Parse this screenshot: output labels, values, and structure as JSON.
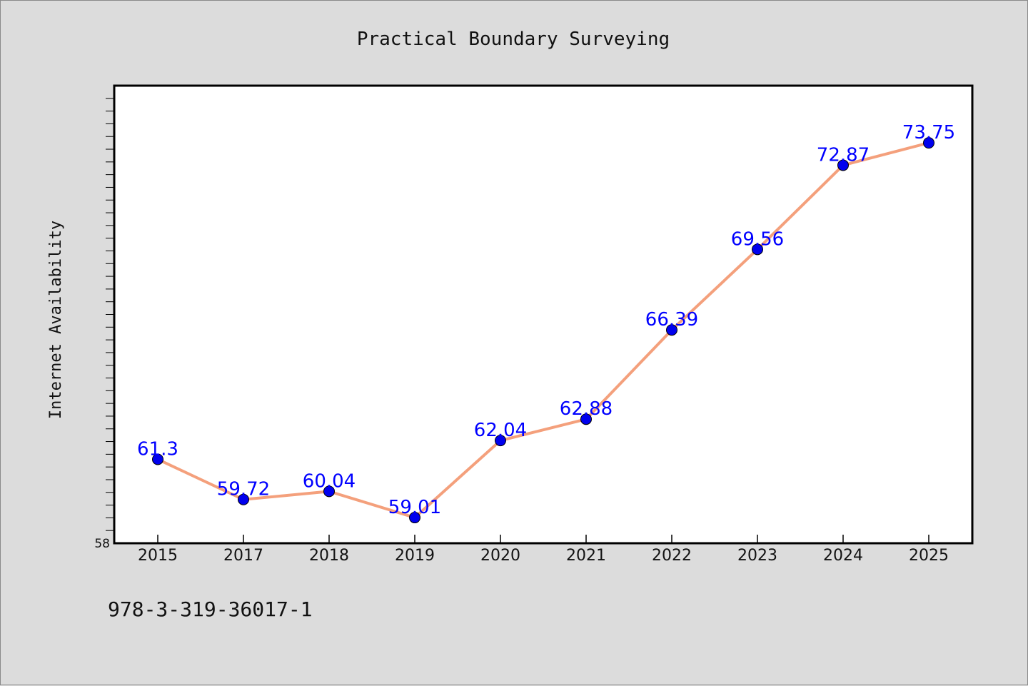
{
  "chart_data": {
    "type": "line",
    "title": "Practical Boundary Surveying",
    "xlabel": "",
    "ylabel": "Internet Availability",
    "categories": [
      "2015",
      "2017",
      "2018",
      "2019",
      "2020",
      "2021",
      "2022",
      "2023",
      "2024",
      "2025"
    ],
    "series": [
      {
        "values": [
          61.3,
          59.72,
          60.04,
          59.01,
          62.04,
          62.88,
          66.39,
          69.56,
          72.87,
          73.75
        ],
        "data_labels": [
          "61.3",
          "59.72",
          "60.04",
          "59.01",
          "62.04",
          "62.88",
          "66.39",
          "69.56",
          "72.87",
          "73.75"
        ],
        "line_color": "#f4a07c",
        "marker_color": "#0000ee"
      }
    ],
    "ylim": [
      58,
      76
    ],
    "yticks_labeled": [
      "58"
    ],
    "grid": false,
    "legend": "none"
  },
  "footer": {
    "isbn": "978-3-319-36017-1"
  }
}
